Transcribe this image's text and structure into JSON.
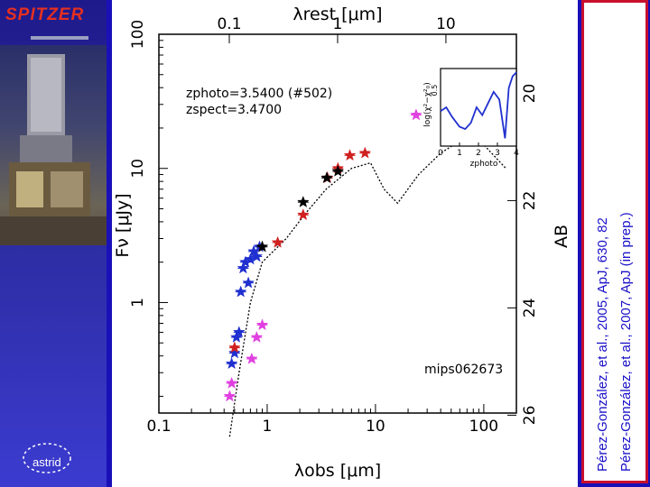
{
  "slide": {
    "logo_text": "SPITZER",
    "astrid_label": "astrid",
    "citations": [
      "Pérez-González, et al., 2005, ApJ, 630, 82",
      "Pérez-González, et al., 2007, ApJ (in prep.)"
    ]
  },
  "chart_data": [
    {
      "type": "scatter",
      "xscale": "log",
      "yscale": "log",
      "xlim": [
        0.1,
        200
      ],
      "ylim": [
        0.15,
        100
      ],
      "xlabel": "λobs [μm]",
      "ylabel": "Fν [μJy]",
      "top_axis_label": "λrest [μm]",
      "right_axis_label": "AB",
      "x_tick_labels": [
        "0.1",
        "1",
        "10",
        "100"
      ],
      "x_ticks": [
        0.1,
        1,
        10,
        100
      ],
      "y_tick_labels": [
        "1",
        "10",
        "100"
      ],
      "y_ticks": [
        1,
        10,
        100
      ],
      "top_tick_labels": [
        "0.1",
        "1",
        "10"
      ],
      "top_ticks_rest": [
        0.1,
        1,
        10
      ],
      "ab_tick_labels": [
        "20",
        "22",
        "24",
        "26"
      ],
      "ab_ticks": [
        20,
        22,
        24,
        26
      ],
      "redshift": 3.47,
      "annotations": {
        "zphoto": "zphoto=3.5400 (#502)",
        "zspect": "zspect=3.4700",
        "object_name": "mips062673"
      },
      "series": [
        {
          "color": "#2030d0",
          "points": [
            [
              0.47,
              0.35
            ],
            [
              0.5,
              0.42
            ],
            [
              0.52,
              0.55
            ],
            [
              0.55,
              0.6
            ],
            [
              0.57,
              1.2
            ],
            [
              0.6,
              1.8
            ],
            [
              0.63,
              2.0
            ],
            [
              0.67,
              1.4
            ],
            [
              0.7,
              2.1
            ],
            [
              0.75,
              2.4
            ],
            [
              0.8,
              2.2
            ],
            [
              0.85,
              2.6
            ]
          ]
        },
        {
          "color": "#e040e0",
          "points": [
            [
              0.45,
              0.2
            ],
            [
              0.47,
              0.25
            ],
            [
              0.72,
              0.38
            ],
            [
              0.8,
              0.55
            ],
            [
              0.9,
              0.68
            ],
            [
              23.7,
              25
            ]
          ]
        },
        {
          "color": "#d02020",
          "points": [
            [
              0.5,
              0.46
            ],
            [
              1.25,
              2.8
            ],
            [
              2.15,
              4.5
            ],
            [
              3.6,
              8.5
            ],
            [
              4.5,
              10
            ],
            [
              5.8,
              12.5
            ],
            [
              8.0,
              13
            ]
          ]
        },
        {
          "color": "#000000",
          "points": [
            [
              0.9,
              2.6
            ],
            [
              2.15,
              5.6
            ],
            [
              3.55,
              8.5
            ],
            [
              4.5,
              9.5
            ]
          ]
        }
      ],
      "inset": {
        "xlabel": "zphoto",
        "ylabel": "log(χ²−χ²₀)",
        "xlim": [
          0,
          4
        ],
        "x_tick_labels": [
          "0",
          "1",
          "2",
          "3",
          "4"
        ],
        "y_tick_labels": [
          "0.5"
        ],
        "series_curve": [
          [
            0.0,
            0.45
          ],
          [
            0.3,
            0.5
          ],
          [
            0.6,
            0.38
          ],
          [
            1.0,
            0.25
          ],
          [
            1.3,
            0.22
          ],
          [
            1.6,
            0.3
          ],
          [
            1.9,
            0.5
          ],
          [
            2.2,
            0.4
          ],
          [
            2.5,
            0.55
          ],
          [
            2.8,
            0.7
          ],
          [
            3.1,
            0.6
          ],
          [
            3.4,
            0.1
          ],
          [
            3.6,
            0.75
          ],
          [
            3.8,
            0.9
          ],
          [
            4.0,
            0.95
          ]
        ]
      }
    }
  ]
}
